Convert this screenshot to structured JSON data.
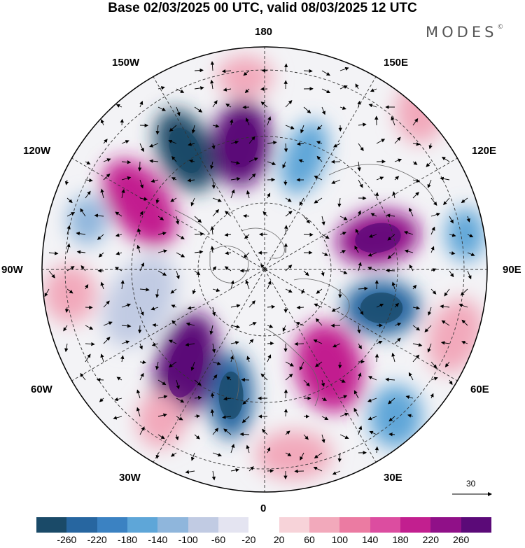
{
  "title": "Base 02/03/2025 00 UTC, valid 08/03/2025 12 UTC",
  "brand": "MODES",
  "brand_mark": "©",
  "longitude_labels": {
    "top": "180",
    "bottom": "0",
    "left": "90W",
    "right": "90E",
    "upper_left_1": "150W",
    "upper_left_2": "120W",
    "upper_right_1": "150E",
    "upper_right_2": "120E",
    "lower_left_1": "60W",
    "lower_left_2": "30W",
    "lower_right_1": "60E",
    "lower_right_2": "30E"
  },
  "vector_reference": "30",
  "colorbar": {
    "colors": [
      "#1a4a68",
      "#2766a0",
      "#3b82c2",
      "#5ea6d8",
      "#8fb6dc",
      "#c1cbe3",
      "#e4e4f1",
      "#ffffff",
      "#f7d3d9",
      "#f2a9bb",
      "#eb7ba2",
      "#dc4da0",
      "#c21f8f",
      "#901088",
      "#5b0a78"
    ],
    "tick_labels": [
      "-260",
      "-220",
      "-180",
      "-140",
      "-100",
      "-60",
      "-20",
      "20",
      "60",
      "100",
      "140",
      "180",
      "220",
      "260"
    ]
  }
}
